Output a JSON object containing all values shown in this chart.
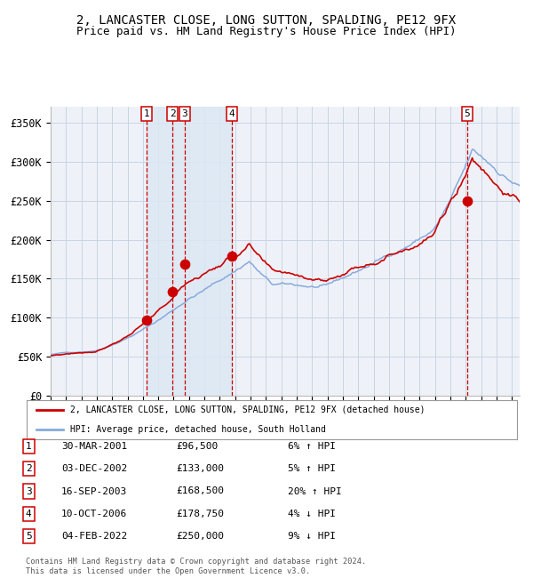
{
  "title": "2, LANCASTER CLOSE, LONG SUTTON, SPALDING, PE12 9FX",
  "subtitle": "Price paid vs. HM Land Registry's House Price Index (HPI)",
  "ylim": [
    0,
    370000
  ],
  "xlim_start": 1995.0,
  "xlim_end": 2025.5,
  "yticks": [
    0,
    50000,
    100000,
    150000,
    200000,
    250000,
    300000,
    350000
  ],
  "ytick_labels": [
    "£0",
    "£50K",
    "£100K",
    "£150K",
    "£200K",
    "£250K",
    "£300K",
    "£350K"
  ],
  "background_color": "#ffffff",
  "plot_bg_color": "#eef2f8",
  "grid_color": "#c8d4e4",
  "sale_dates_x": [
    2001.247,
    2002.919,
    2003.712,
    2006.774,
    2022.088
  ],
  "sale_prices": [
    96500,
    133000,
    168500,
    178750,
    250000
  ],
  "sale_labels": [
    "1",
    "2",
    "3",
    "4",
    "5"
  ],
  "sale_color": "#cc0000",
  "hpi_line_color": "#88aadd",
  "price_line_color": "#cc0000",
  "shade_color": "#dce8f4",
  "vline_color": "#cc0000",
  "legend_price_label": "2, LANCASTER CLOSE, LONG SUTTON, SPALDING, PE12 9FX (detached house)",
  "legend_hpi_label": "HPI: Average price, detached house, South Holland",
  "table_rows": [
    [
      "1",
      "30-MAR-2001",
      "£96,500",
      "6% ↑ HPI"
    ],
    [
      "2",
      "03-DEC-2002",
      "£133,000",
      "5% ↑ HPI"
    ],
    [
      "3",
      "16-SEP-2003",
      "£168,500",
      "20% ↑ HPI"
    ],
    [
      "4",
      "10-OCT-2006",
      "£178,750",
      "4% ↓ HPI"
    ],
    [
      "5",
      "04-FEB-2022",
      "£250,000",
      "9% ↓ HPI"
    ]
  ],
  "footnote": "Contains HM Land Registry data © Crown copyright and database right 2024.\nThis data is licensed under the Open Government Licence v3.0.",
  "title_fontsize": 10,
  "subtitle_fontsize": 9
}
